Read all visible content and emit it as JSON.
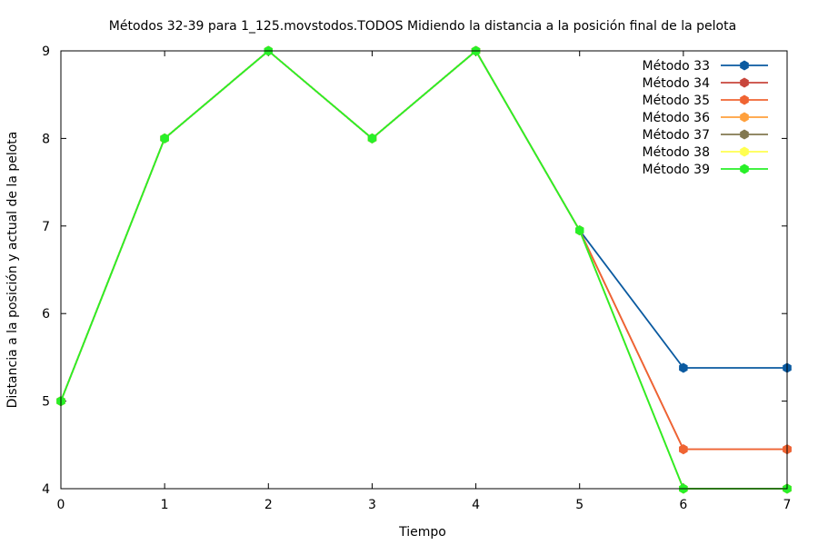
{
  "chart_data": {
    "type": "line",
    "title": "Métodos 32-39 para 1_125.movstodos.TODOS Midiendo la distancia a la posición final de la pelota",
    "xlabel": "Tiempo",
    "ylabel": "Distancia a la posición y actual de la pelota",
    "xlim": [
      0,
      7
    ],
    "ylim": [
      4,
      9
    ],
    "xticks": [
      0,
      1,
      2,
      3,
      4,
      5,
      6,
      7
    ],
    "yticks": [
      4,
      5,
      6,
      7,
      8,
      9
    ],
    "legend_position": "top-right",
    "grid": false,
    "x": [
      0,
      1,
      2,
      3,
      4,
      5,
      6,
      7
    ],
    "series": [
      {
        "name": "Método 33",
        "color": "#0a5aa0",
        "values": [
          5,
          8,
          9,
          8,
          9,
          6.95,
          5.38,
          5.38
        ]
      },
      {
        "name": "Método 34",
        "color": "#c8463c",
        "values": [
          5,
          8,
          9,
          8,
          9,
          6.95,
          4.45,
          4.45
        ]
      },
      {
        "name": "Método 35",
        "color": "#f06432",
        "values": [
          5,
          8,
          9,
          8,
          9,
          6.95,
          4.45,
          4.45
        ]
      },
      {
        "name": "Método 36",
        "color": "#ffa03c",
        "values": [
          5,
          8,
          9,
          8,
          9,
          6.95,
          4.0,
          4.0
        ]
      },
      {
        "name": "Método 37",
        "color": "#827850",
        "values": [
          5,
          8,
          9,
          8,
          9,
          6.95,
          4.0,
          4.0
        ]
      },
      {
        "name": "Método 38",
        "color": "#ffff50",
        "values": [
          5,
          8,
          9,
          8,
          9,
          6.95,
          4.0,
          4.0
        ]
      },
      {
        "name": "Método 39",
        "color": "#28f028",
        "values": [
          5,
          8,
          9,
          8,
          9,
          6.95,
          4.0,
          4.0
        ]
      }
    ]
  }
}
